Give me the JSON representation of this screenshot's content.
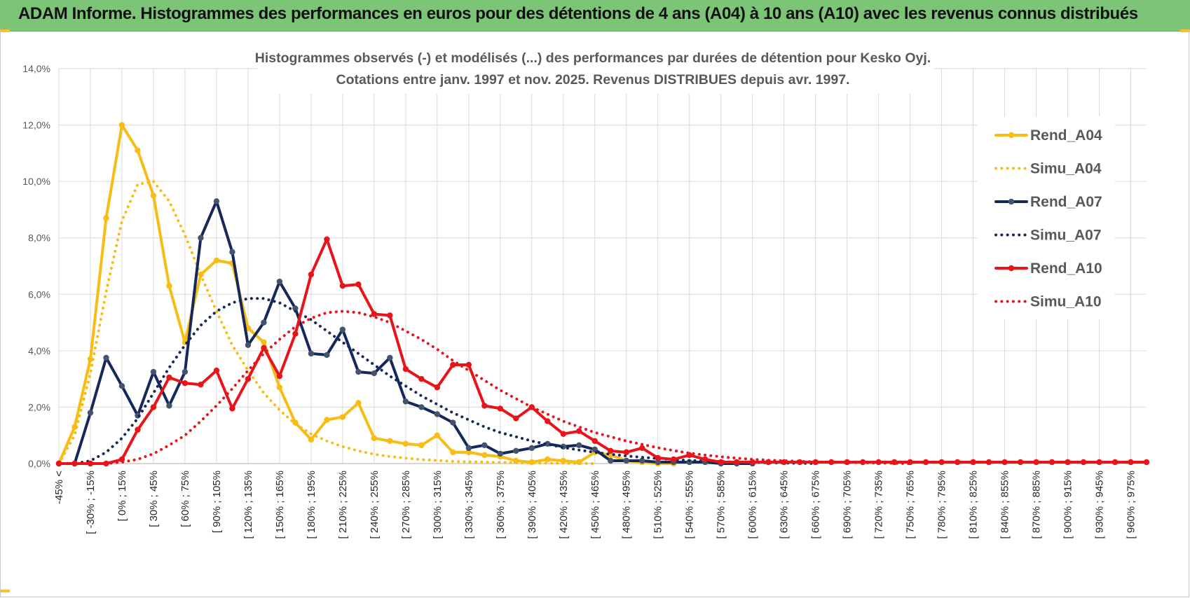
{
  "header": {
    "title": "ADAM Informe. Histogrammes des performances en euros pour des détentions de 4 ans (A04) à 10 ans (A10) avec les revenus connus distribués",
    "accent_color": "#7cc576"
  },
  "chart_data": {
    "type": "line",
    "title_line1": "Histogrammes observés (-) et modélisés (...) des performances par durées de détention pour Kesko Oyj.",
    "title_line2": "Cotations entre janv. 1997 et nov. 2025. Revenus DISTRIBUES depuis avr. 1997.",
    "xlabel": "",
    "ylabel": "",
    "ylim": [
      0,
      14
    ],
    "y_ticks": [
      0,
      2,
      4,
      6,
      8,
      10,
      12,
      14
    ],
    "y_tick_labels": [
      "0,0%",
      "2,0%",
      "4,0%",
      "6,0%",
      "8,0%",
      "10,0%",
      "12,0%",
      "14,0%"
    ],
    "grid": true,
    "legend_position": "right",
    "x_tick_labels": [
      "-45% <",
      "[ -30% ; -15%",
      "[ 0% ; 15%",
      "[ 30% ; 45%",
      "[ 60% ; 75%",
      "[ 90% ; 105%",
      "[ 120% ; 135%",
      "[ 150% ; 165%",
      "[ 180% ; 195%",
      "[ 210% ; 225%",
      "[ 240% ; 255%",
      "[ 270% ; 285%",
      "[ 300% ; 315%",
      "[ 330% ; 345%",
      "[ 360% ; 375%",
      "[ 390% ; 405%",
      "[ 420% ; 435%",
      "[ 450% ; 465%",
      "[ 480% ; 495%",
      "[ 510% ; 525%",
      "[ 540% ; 555%",
      "[ 570% ; 585%",
      "[ 600% ; 615%",
      "[ 630% ; 645%",
      "[ 660% ; 675%",
      "[ 690% ; 705%",
      "[ 720% ; 735%",
      "[ 750% ; 765%",
      "[ 780% ; 795%",
      "[ 810% ; 825%",
      "[ 840% ; 855%",
      "[ 870% ; 885%",
      "[ 900% ; 915%",
      "[ 930% ; 945%",
      "[ 960% ; 975%"
    ],
    "n_categories": 70,
    "series": [
      {
        "name": "Rend_A04",
        "style": "solid",
        "color": "#f7bd15",
        "markers": true,
        "values": [
          0.0,
          1.3,
          3.7,
          8.7,
          12.0,
          11.1,
          9.5,
          6.3,
          4.3,
          6.7,
          7.2,
          7.1,
          4.8,
          4.3,
          2.7,
          1.45,
          0.85,
          1.55,
          1.65,
          2.15,
          0.9,
          0.8,
          0.7,
          0.65,
          1.0,
          0.4,
          0.4,
          0.3,
          0.25,
          0.1,
          0.05,
          0.15,
          0.1,
          0.05,
          0.4,
          0.3,
          0.1,
          0.05,
          0.0,
          0.0
        ]
      },
      {
        "name": "Simu_A04",
        "style": "dotted",
        "color": "#f7bd15",
        "markers": false,
        "values": [
          0.0,
          1.0,
          3.2,
          6.1,
          8.6,
          9.9,
          10.0,
          9.3,
          8.1,
          6.7,
          5.4,
          4.2,
          3.3,
          2.5,
          1.9,
          1.4,
          1.05,
          0.8,
          0.6,
          0.45,
          0.33,
          0.25,
          0.19,
          0.14,
          0.11,
          0.08,
          0.06,
          0.05,
          0.04,
          0.03,
          0.02,
          0.015,
          0.01,
          0.005,
          0.0
        ]
      },
      {
        "name": "Rend_A07",
        "style": "solid",
        "color": "#14285a",
        "markers": true,
        "values": [
          0.0,
          0.0,
          1.8,
          3.75,
          2.75,
          1.7,
          3.25,
          2.05,
          3.25,
          8.0,
          9.3,
          7.5,
          4.2,
          5.0,
          6.45,
          5.5,
          3.9,
          3.85,
          4.75,
          3.25,
          3.2,
          3.75,
          2.2,
          2.0,
          1.75,
          1.45,
          0.55,
          0.65,
          0.35,
          0.45,
          0.55,
          0.7,
          0.6,
          0.65,
          0.5,
          0.1,
          0.1,
          0.1,
          0.05,
          0.05,
          0.05,
          0.05,
          0.0,
          0.0,
          0.0
        ]
      },
      {
        "name": "Simu_A07",
        "style": "dotted",
        "color": "#14285a",
        "markers": false,
        "values": [
          0.0,
          0.0,
          0.1,
          0.4,
          0.9,
          1.6,
          2.5,
          3.4,
          4.2,
          4.9,
          5.4,
          5.7,
          5.85,
          5.85,
          5.7,
          5.4,
          5.1,
          4.7,
          4.3,
          3.9,
          3.5,
          3.1,
          2.75,
          2.4,
          2.1,
          1.8,
          1.55,
          1.3,
          1.1,
          0.95,
          0.8,
          0.68,
          0.57,
          0.48,
          0.4,
          0.33,
          0.27,
          0.22,
          0.18,
          0.14,
          0.11,
          0.09,
          0.07,
          0.05,
          0.04,
          0.03,
          0.02,
          0.01,
          0.0
        ]
      },
      {
        "name": "Rend_A10",
        "style": "solid",
        "color": "#e8141a",
        "markers": true,
        "values": [
          0.0,
          0.0,
          0.0,
          0.0,
          0.15,
          1.2,
          2.0,
          3.05,
          2.85,
          2.8,
          3.3,
          1.95,
          3.0,
          4.1,
          3.1,
          4.6,
          6.7,
          7.95,
          6.3,
          6.35,
          5.3,
          5.25,
          3.35,
          3.0,
          2.7,
          3.5,
          3.5,
          2.05,
          1.95,
          1.6,
          2.0,
          1.5,
          1.05,
          1.15,
          0.8,
          0.45,
          0.4,
          0.55,
          0.2,
          0.15,
          0.3,
          0.15,
          0.05,
          0.05,
          0.05,
          0.05,
          0.05,
          0.05,
          0.05,
          0.05,
          0.05,
          0.05,
          0.05,
          0.05,
          0.05,
          0.05,
          0.05,
          0.05,
          0.05,
          0.05,
          0.05,
          0.05,
          0.05,
          0.05,
          0.05,
          0.05,
          0.05,
          0.05,
          0.05,
          0.05
        ]
      },
      {
        "name": "Simu_A10",
        "style": "dotted",
        "color": "#e8141a",
        "markers": false,
        "values": [
          0.0,
          0.0,
          0.0,
          0.0,
          0.05,
          0.15,
          0.35,
          0.65,
          1.0,
          1.5,
          2.05,
          2.65,
          3.3,
          3.9,
          4.4,
          4.85,
          5.15,
          5.35,
          5.4,
          5.35,
          5.2,
          5.0,
          4.7,
          4.4,
          4.05,
          3.65,
          3.3,
          2.95,
          2.6,
          2.3,
          2.0,
          1.75,
          1.5,
          1.3,
          1.1,
          0.95,
          0.8,
          0.68,
          0.56,
          0.46,
          0.37,
          0.3,
          0.24,
          0.19,
          0.15,
          0.12,
          0.1,
          0.08,
          0.06,
          0.05,
          0.04,
          0.03,
          0.02,
          0.01,
          0.0
        ]
      }
    ]
  }
}
